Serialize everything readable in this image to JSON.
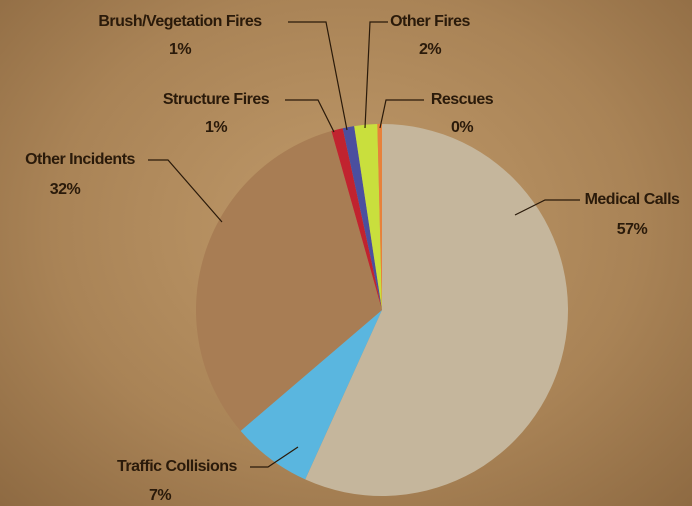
{
  "chart_data": {
    "type": "pie",
    "categories": [
      "Medical Calls",
      "Traffic Collisions",
      "Other Incidents",
      "Structure Fires",
      "Brush/Vegetation Fires",
      "Other Fires",
      "Rescues"
    ],
    "values": [
      57,
      7,
      32,
      1,
      1,
      2,
      0.4
    ],
    "value_labels": [
      "57%",
      "7%",
      "32%",
      "1%",
      "1%",
      "2%",
      "0%"
    ],
    "colors": [
      "#c5b69c",
      "#5ab6df",
      "#a87d54",
      "#c1232f",
      "#4b4f9f",
      "#c9df3d",
      "#e8813a"
    ]
  }
}
